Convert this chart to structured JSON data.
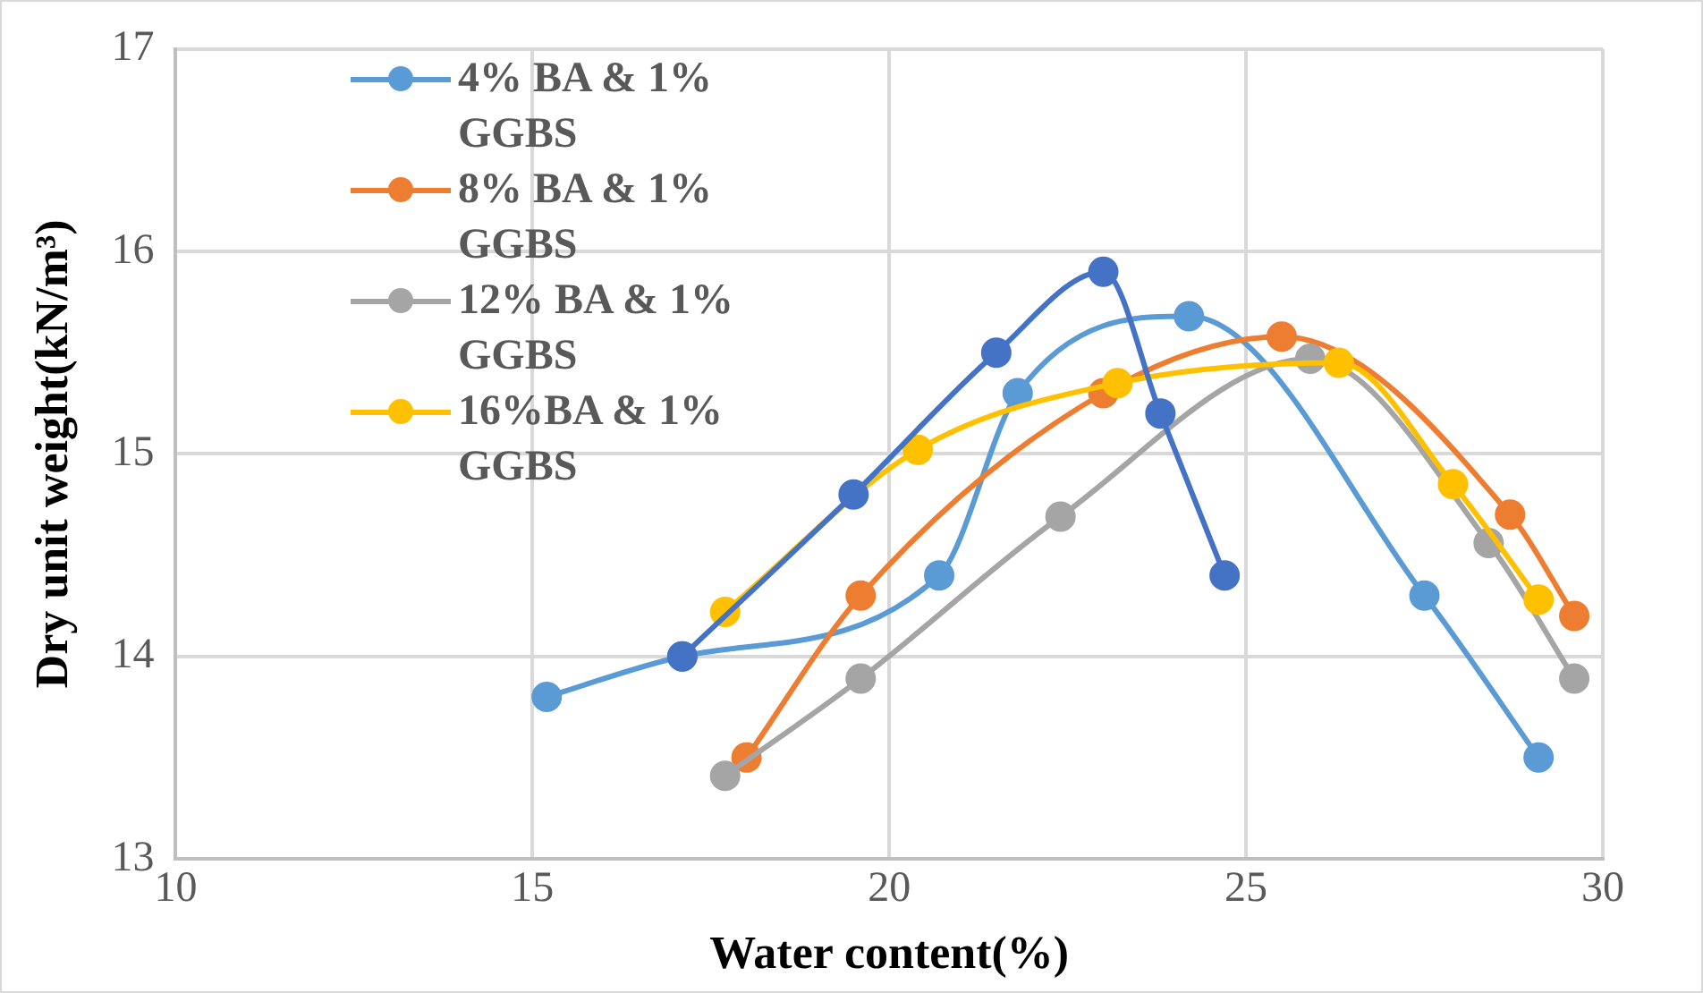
{
  "chart_data": {
    "type": "line",
    "xlabel": "Water content(%)",
    "ylabel": "Dry unit weight(kN/m³)",
    "xlim": [
      10,
      30
    ],
    "xticks": [
      10,
      15,
      20,
      25,
      30
    ],
    "ylim": [
      13,
      17
    ],
    "yticks": [
      13,
      14,
      15,
      16,
      17
    ],
    "grid": true,
    "legend": "top left",
    "marker": "circle",
    "series": [
      {
        "name": "4% BA & 1% GGBS",
        "color": "#5b9bd5",
        "x": [
          15.2,
          17.1,
          20.7,
          21.8,
          24.2,
          27.5,
          29.1
        ],
        "values": [
          13.8,
          14.0,
          14.4,
          15.3,
          15.68,
          14.3,
          13.5
        ]
      },
      {
        "name": "8% BA & 1% GGBS",
        "color": "#ed7d31",
        "x": [
          18.0,
          19.6,
          23.0,
          25.5,
          28.7,
          29.6
        ],
        "values": [
          13.5,
          14.3,
          15.3,
          15.58,
          14.7,
          14.2
        ]
      },
      {
        "name": "12% BA & 1% GGBS",
        "color": "#a5a5a5",
        "x": [
          17.7,
          19.6,
          22.4,
          25.9,
          28.4,
          29.6
        ],
        "values": [
          13.41,
          13.89,
          14.69,
          15.47,
          14.56,
          13.89
        ]
      },
      {
        "name": "16%BA & 1% GGBS",
        "color": "#ffc000",
        "x": [
          17.7,
          20.4,
          23.2,
          26.3,
          27.9,
          29.1
        ],
        "values": [
          14.22,
          15.02,
          15.35,
          15.45,
          14.85,
          14.28
        ]
      },
      {
        "color": "#4472c4",
        "x": [
          17.1,
          19.5,
          21.5,
          23.0,
          23.8,
          24.7
        ],
        "values": [
          14.0,
          14.8,
          15.5,
          15.9,
          15.2,
          14.4
        ]
      }
    ]
  }
}
